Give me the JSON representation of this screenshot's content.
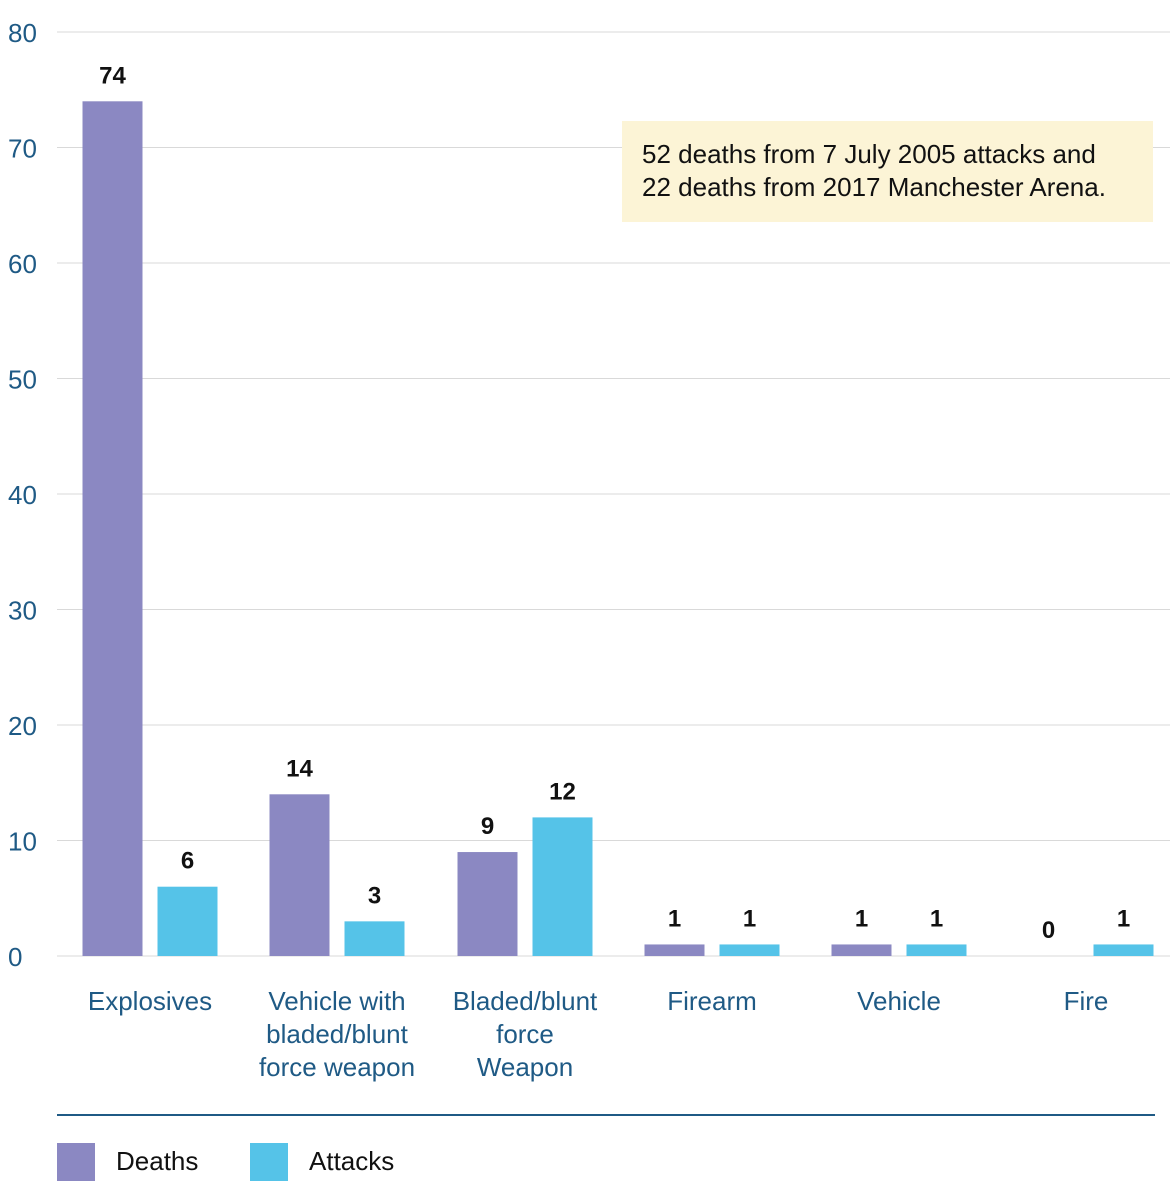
{
  "chart_data": {
    "type": "bar",
    "categories": [
      [
        "Explosives"
      ],
      [
        "Vehicle with",
        "bladed/blunt",
        "force weapon"
      ],
      [
        "Bladed/blunt",
        "force",
        "Weapon"
      ],
      [
        "Firearm"
      ],
      [
        "Vehicle"
      ],
      [
        "Fire"
      ]
    ],
    "series": [
      {
        "name": "Deaths",
        "values": [
          74,
          14,
          9,
          1,
          1,
          0
        ],
        "color": "#8b88c2"
      },
      {
        "name": "Attacks",
        "values": [
          6,
          3,
          12,
          1,
          1,
          1
        ],
        "color": "#55c3e8"
      }
    ],
    "ylim": [
      0,
      80
    ],
    "yticks": [
      0,
      10,
      20,
      30,
      40,
      50,
      60,
      70,
      80
    ],
    "grid": true,
    "legend_position": "bottom-left",
    "annotation": {
      "lines": [
        "52 deaths from 7 July 2005 attacks and",
        "22 deaths from 2017 Manchester Arena."
      ],
      "background": "#fcf4d6"
    },
    "colors": {
      "axis_text": "#1f5a85",
      "gridline": "#d9d9d9",
      "rule": "#1f5a85"
    }
  }
}
